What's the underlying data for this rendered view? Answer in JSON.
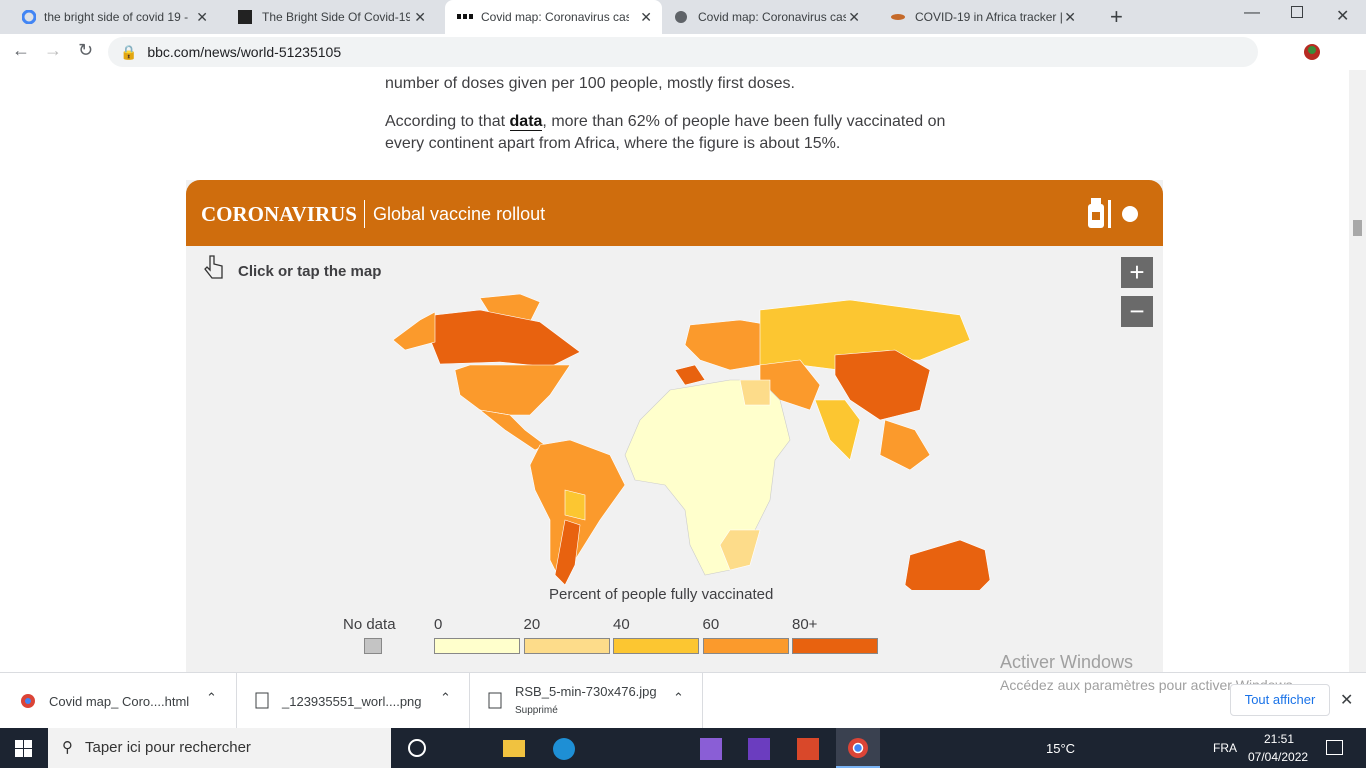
{
  "browser": {
    "tabs": [
      {
        "title": "the bright side of covid 19 -"
      },
      {
        "title": "The Bright Side Of Covid-19:"
      },
      {
        "title": "Covid map: Coronavirus case"
      },
      {
        "title": "Covid map: Coronavirus case"
      },
      {
        "title": "COVID-19 in Africa tracker |"
      }
    ],
    "url": "bbc.com/news/world-51235105"
  },
  "article": {
    "line_1": "number of doses given per 100 people, mostly first doses.",
    "para_before": "According to that ",
    "para_link": "data",
    "para_after": ", more than 62% of people have been fully vaccinated on every continent apart from Africa, where the figure is about 15%."
  },
  "widget": {
    "brand": "CORONAVIRUS",
    "title": "Global vaccine rollout",
    "hint": "Click or tap the map",
    "zoom_in": "+",
    "zoom_out": "−",
    "legend": {
      "title": "Percent of people fully vaccinated",
      "no_data": "No data",
      "no_data_color": "#c4c4c4",
      "bins": [
        {
          "label": "0",
          "color": "#ffffcc"
        },
        {
          "label": "20",
          "color": "#fddc8a"
        },
        {
          "label": "40",
          "color": "#fcc631"
        },
        {
          "label": "60",
          "color": "#fb9a2c"
        },
        {
          "label": "80+",
          "color": "#e8620f"
        }
      ]
    }
  },
  "watermark": {
    "title": "Activer Windows",
    "text": "Accédez aux paramètres pour activer Windows."
  },
  "downloads": {
    "items": [
      {
        "name": "Covid map_ Coro....html"
      },
      {
        "name": "_123935551_worl....png"
      },
      {
        "name": "RSB_5-min-730x476.jpg",
        "status": "Supprimé"
      }
    ],
    "show_all": "Tout afficher"
  },
  "taskbar": {
    "search": "Taper ici pour rechercher",
    "weather": "15°C",
    "language": "FRA",
    "time": "21:51",
    "date": "07/04/2022"
  }
}
